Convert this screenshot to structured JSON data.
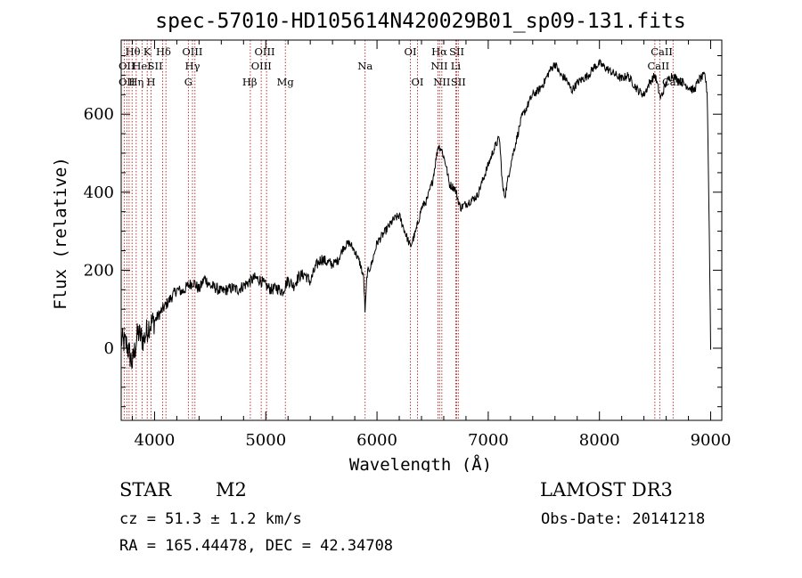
{
  "chart_data": {
    "type": "line",
    "title": "spec-57010-HD105614N420029B01_sp09-131.fits",
    "xlabel": "Wavelength (Å)",
    "ylabel": "Flux (relative)",
    "xlim": [
      3700,
      9100
    ],
    "ylim": [
      -185,
      790
    ],
    "x_ticks": [
      4000,
      5000,
      6000,
      7000,
      8000,
      9000
    ],
    "y_ticks": [
      0,
      200,
      400,
      600
    ],
    "grid": false,
    "series": [
      {
        "name": "spectrum",
        "x": [
          3700,
          3750,
          3800,
          3850,
          3900,
          3950,
          4000,
          4050,
          4100,
          4150,
          4200,
          4250,
          4300,
          4350,
          4400,
          4450,
          4500,
          4550,
          4600,
          4650,
          4700,
          4750,
          4800,
          4850,
          4900,
          4950,
          5000,
          5050,
          5100,
          5150,
          5200,
          5250,
          5300,
          5350,
          5400,
          5450,
          5500,
          5550,
          5600,
          5650,
          5700,
          5750,
          5800,
          5850,
          5880,
          5893,
          5910,
          5950,
          6000,
          6050,
          6100,
          6150,
          6200,
          6250,
          6300,
          6350,
          6400,
          6450,
          6500,
          6550,
          6580,
          6620,
          6650,
          6700,
          6750,
          6800,
          6850,
          6900,
          6950,
          7000,
          7050,
          7100,
          7130,
          7150,
          7200,
          7250,
          7300,
          7350,
          7400,
          7450,
          7500,
          7550,
          7600,
          7650,
          7700,
          7750,
          7800,
          7850,
          7900,
          7950,
          8000,
          8050,
          8100,
          8150,
          8200,
          8250,
          8300,
          8350,
          8400,
          8450,
          8500,
          8550,
          8600,
          8650,
          8700,
          8750,
          8800,
          8850,
          8880,
          8900,
          8950,
          8970,
          8990,
          9000
        ],
        "y": [
          20,
          10,
          -40,
          40,
          20,
          60,
          70,
          90,
          110,
          130,
          150,
          145,
          160,
          170,
          150,
          180,
          160,
          155,
          145,
          150,
          155,
          150,
          160,
          170,
          180,
          175,
          160,
          150,
          155,
          145,
          175,
          160,
          185,
          190,
          170,
          210,
          230,
          220,
          215,
          225,
          260,
          270,
          250,
          215,
          180,
          90,
          190,
          215,
          270,
          290,
          310,
          330,
          340,
          300,
          260,
          300,
          360,
          380,
          430,
          520,
          510,
          470,
          420,
          410,
          360,
          370,
          380,
          390,
          430,
          470,
          510,
          540,
          410,
          390,
          470,
          530,
          590,
          620,
          650,
          660,
          680,
          710,
          730,
          700,
          690,
          660,
          680,
          690,
          700,
          720,
          730,
          720,
          710,
          700,
          690,
          700,
          680,
          660,
          650,
          680,
          700,
          640,
          680,
          700,
          690,
          680,
          670,
          660,
          680,
          690,
          700,
          650,
          250,
          0
        ]
      }
    ],
    "lines": [
      {
        "x": 3727,
        "label": "OII"
      },
      {
        "x": 3750,
        "label": "OII"
      },
      {
        "x": 3771,
        "label": "Hθ"
      },
      {
        "x": 3798,
        "label": "Hθ"
      },
      {
        "x": 3835,
        "label": "Hη"
      },
      {
        "x": 3889,
        "label": "HeI"
      },
      {
        "x": 3934,
        "label": "K"
      },
      {
        "x": 3969,
        "label": "H"
      },
      {
        "x": 4072,
        "label": "SII"
      },
      {
        "x": 4102,
        "label": "Hδ"
      },
      {
        "x": 4304,
        "label": "G"
      },
      {
        "x": 4341,
        "label": "Hγ"
      },
      {
        "x": 4363,
        "label": "OIII"
      },
      {
        "x": 4861,
        "label": "Hβ"
      },
      {
        "x": 4959,
        "label": "OIII"
      },
      {
        "x": 5007,
        "label": "OIII"
      },
      {
        "x": 5176,
        "label": "Mg"
      },
      {
        "x": 5893,
        "label": "Na"
      },
      {
        "x": 6300,
        "label": "OI"
      },
      {
        "x": 6364,
        "label": "OI"
      },
      {
        "x": 6548,
        "label": "NII"
      },
      {
        "x": 6563,
        "label": "Hα"
      },
      {
        "x": 6583,
        "label": "NII"
      },
      {
        "x": 6708,
        "label": "Li"
      },
      {
        "x": 6717,
        "label": "SII"
      },
      {
        "x": 6731,
        "label": "SII"
      },
      {
        "x": 8498,
        "label": "CaII"
      },
      {
        "x": 8542,
        "label": "CaII"
      },
      {
        "x": 8662,
        "label": "CaII"
      }
    ],
    "line_labels": [
      {
        "text": "Hθ",
        "x": 3805,
        "row": 1
      },
      {
        "text": "K",
        "x": 3934,
        "row": 1
      },
      {
        "text": "Hδ",
        "x": 4080,
        "row": 1
      },
      {
        "text": "OIII",
        "x": 4340,
        "row": 1
      },
      {
        "text": "OIII",
        "x": 4990,
        "row": 1
      },
      {
        "text": "OI",
        "x": 6300,
        "row": 1
      },
      {
        "text": "Hα",
        "x": 6560,
        "row": 1
      },
      {
        "text": "SII",
        "x": 6717,
        "row": 1
      },
      {
        "text": "CaII",
        "x": 8560,
        "row": 1
      },
      {
        "text": "OII",
        "x": 3750,
        "row": 2
      },
      {
        "text": "HeI",
        "x": 3885,
        "row": 2
      },
      {
        "text": "SII",
        "x": 4005,
        "row": 2
      },
      {
        "text": "Hγ",
        "x": 4341,
        "row": 2
      },
      {
        "text": "OIII",
        "x": 4960,
        "row": 2
      },
      {
        "text": "Na",
        "x": 5893,
        "row": 2
      },
      {
        "text": "NII",
        "x": 6560,
        "row": 2
      },
      {
        "text": "Li",
        "x": 6708,
        "row": 2
      },
      {
        "text": "CaII",
        "x": 8530,
        "row": 2
      },
      {
        "text": "OII",
        "x": 3750,
        "row": 3
      },
      {
        "text": "Hη",
        "x": 3835,
        "row": 3
      },
      {
        "text": "H",
        "x": 3969,
        "row": 3
      },
      {
        "text": "G",
        "x": 4304,
        "row": 3
      },
      {
        "text": "Hβ",
        "x": 4855,
        "row": 3
      },
      {
        "text": "Mg",
        "x": 5176,
        "row": 3
      },
      {
        "text": "OI",
        "x": 6364,
        "row": 3
      },
      {
        "text": "NII",
        "x": 6583,
        "row": 3
      },
      {
        "text": "SII",
        "x": 6731,
        "row": 3
      },
      {
        "text": "CaII",
        "x": 8662,
        "row": 3
      }
    ]
  },
  "info": {
    "object_class": "STAR",
    "subclass": "M2",
    "survey": "LAMOST DR3",
    "cz": "cz = 51.3 ± 1.2 km/s",
    "obs_date": "Obs-Date: 20141218",
    "coords": "RA = 165.44478, DEC =  42.34708"
  }
}
